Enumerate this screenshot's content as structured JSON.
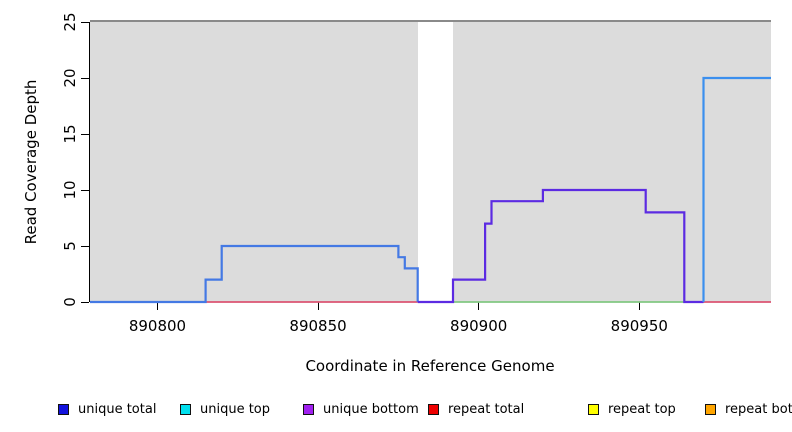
{
  "chart_data": {
    "type": "line",
    "title": "",
    "xlabel": "Coordinate in Reference Genome",
    "ylabel": "Read Coverage Depth",
    "xlim": [
      890779,
      890991
    ],
    "ylim": [
      0,
      25
    ],
    "x_ticks": [
      "890800",
      "890850",
      "890900",
      "890950"
    ],
    "x_tick_values": [
      890800,
      890850,
      890900,
      890950
    ],
    "y_ticks": [
      "0",
      "5",
      "10",
      "15",
      "20",
      "25"
    ],
    "y_tick_values": [
      0,
      5,
      10,
      15,
      20,
      25
    ],
    "grid": "off",
    "panel_background": "#dcdcdc",
    "panel_top_edge_color": "#8a8a8a",
    "gap_region": {
      "x_start": 890881,
      "x_end": 890892,
      "color": "#ffffff"
    },
    "series": [
      {
        "name": "unique-total-left",
        "color": "#4479e4",
        "width": 2.2,
        "steps": [
          [
            890779,
            0
          ],
          [
            890815,
            2
          ],
          [
            890820,
            5
          ],
          [
            890875,
            4
          ],
          [
            890877,
            3
          ],
          [
            890881,
            0
          ]
        ],
        "end_x": 890881
      },
      {
        "name": "unique-bottom",
        "color": "#5c2be2",
        "width": 2.2,
        "steps": [
          [
            890881,
            0
          ],
          [
            890892,
            2
          ],
          [
            890902,
            7
          ],
          [
            890904,
            9
          ],
          [
            890920,
            10
          ],
          [
            890952,
            8
          ],
          [
            890964,
            0
          ]
        ],
        "end_x": 890970
      },
      {
        "name": "unique-total-right",
        "color": "#3b8fee",
        "width": 2.2,
        "steps": [
          [
            890970,
            0
          ],
          [
            890970,
            20
          ]
        ],
        "end_x": 890991
      }
    ],
    "baseline_segments": [
      {
        "name": "repeat-total-left",
        "color": "#dc5472",
        "x_start": 890779,
        "x_end": 890881,
        "value": 0
      },
      {
        "name": "green-baseline",
        "color": "#82c882",
        "x_start": 890892,
        "x_end": 890964,
        "value": 0
      },
      {
        "name": "repeat-total-right",
        "color": "#dc5472",
        "x_start": 890970,
        "x_end": 890991,
        "value": 0
      }
    ],
    "legend": {
      "position": "bottom",
      "items": [
        {
          "label": "unique total",
          "color": "#1212dd"
        },
        {
          "label": "unique top",
          "color": "#00e0ee"
        },
        {
          "label": "unique bottom",
          "color": "#a020f0"
        },
        {
          "label": "repeat total",
          "color": "#ee0000"
        },
        {
          "label": "repeat top",
          "color": "#ffff00"
        },
        {
          "label": "repeat bottom",
          "color": "#ffa500"
        }
      ]
    }
  }
}
